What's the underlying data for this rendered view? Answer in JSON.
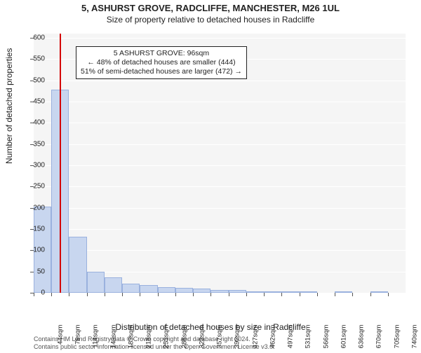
{
  "titles": {
    "line1": "5, ASHURST GROVE, RADCLIFFE, MANCHESTER, M26 1UL",
    "line2": "Size of property relative to detached houses in Radcliffe"
  },
  "chart": {
    "type": "histogram",
    "ylabel": "Number of detached properties",
    "xlabel": "Distribution of detached houses by size in Radcliffe",
    "ylim": [
      0,
      610
    ],
    "ytick_step": 50,
    "ytick_max": 600,
    "plot_bg": "#f5f5f5",
    "grid_color": "#ffffff",
    "bar_fill": "#c8d6ef",
    "bar_border": "#9ab1de",
    "marker_color": "#d40000",
    "marker_x": 96,
    "x_start": 44,
    "x_step": 35,
    "x_unit": "sqm",
    "n_xticks": 21,
    "bars": [
      {
        "x": 44,
        "v": 202
      },
      {
        "x": 79,
        "v": 478
      },
      {
        "x": 114,
        "v": 132
      },
      {
        "x": 149,
        "v": 50
      },
      {
        "x": 183,
        "v": 36
      },
      {
        "x": 218,
        "v": 22
      },
      {
        "x": 253,
        "v": 18
      },
      {
        "x": 288,
        "v": 14
      },
      {
        "x": 323,
        "v": 12
      },
      {
        "x": 357,
        "v": 10
      },
      {
        "x": 392,
        "v": 6
      },
      {
        "x": 427,
        "v": 6
      },
      {
        "x": 462,
        "v": 4
      },
      {
        "x": 497,
        "v": 2
      },
      {
        "x": 531,
        "v": 2
      },
      {
        "x": 566,
        "v": 2
      },
      {
        "x": 601,
        "v": 0
      },
      {
        "x": 636,
        "v": 2
      },
      {
        "x": 670,
        "v": 0
      },
      {
        "x": 705,
        "v": 2
      },
      {
        "x": 740,
        "v": 0
      }
    ]
  },
  "annotation": {
    "line1": "5 ASHURST GROVE: 96sqm",
    "line2": "← 48% of detached houses are smaller (444)",
    "line3": "51% of semi-detached houses are larger (472) →"
  },
  "credits": {
    "line1": "Contains HM Land Registry data © Crown copyright and database right 2024.",
    "line2": "Contains public sector information licensed under the Open Government Licence v3.0."
  }
}
